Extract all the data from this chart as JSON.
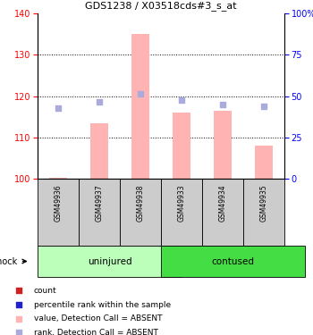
{
  "title": "GDS1238 / X03518cds#3_s_at",
  "samples": [
    "GSM49936",
    "GSM49937",
    "GSM49938",
    "GSM49933",
    "GSM49934",
    "GSM49935"
  ],
  "bar_values": [
    100.3,
    113.5,
    135.0,
    116.0,
    116.5,
    108.0
  ],
  "rank_values": [
    117.0,
    118.5,
    120.5,
    119.0,
    118.0,
    117.5
  ],
  "ylim_left": [
    100,
    140
  ],
  "yticks_left": [
    100,
    110,
    120,
    130,
    140
  ],
  "yticks_right": [
    0,
    25,
    50,
    75,
    100
  ],
  "ytick_labels_right": [
    "0",
    "25",
    "50",
    "75",
    "100%"
  ],
  "bar_color": "#ffb3b3",
  "rank_color": "#aaaadd",
  "bar_color_legend": "#cc2222",
  "rank_color_legend": "#2222cc",
  "uninjured_color": "#bbffbb",
  "contused_color": "#44dd44",
  "sample_bg": "#cccccc",
  "bar_width": 0.45
}
